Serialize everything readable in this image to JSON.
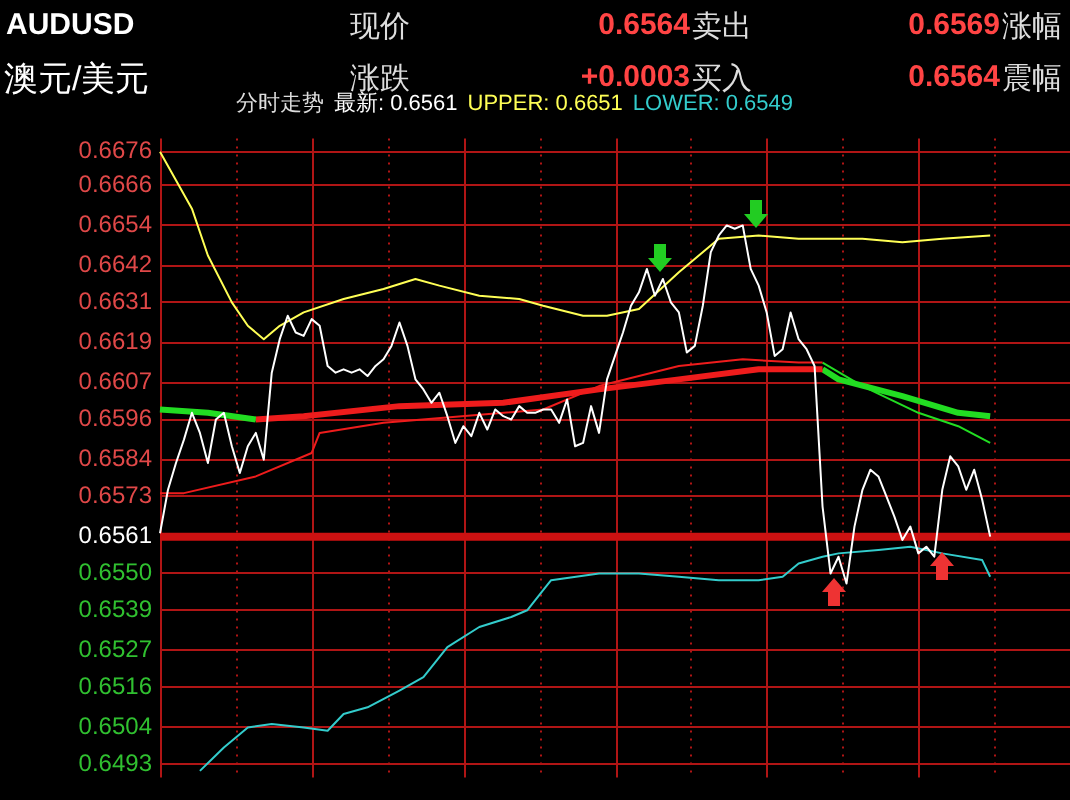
{
  "chart_data": {
    "type": "line",
    "title": "AUDUSD",
    "subtitle": "澳元/美元",
    "annotations": [
      "现价",
      "0.6564",
      "卖出",
      "0.6569",
      "涨幅",
      "涨跌",
      "+0.0003",
      "买入",
      "0.6564",
      "震幅",
      "分时走势",
      "最新: 0.6561",
      "UPPER: 0.6651",
      "LOWER: 0.6549"
    ],
    "categories": [
      null,
      null,
      null,
      null,
      null,
      null,
      null,
      null,
      null,
      null,
      null,
      null,
      null,
      null,
      null,
      null,
      null,
      null,
      null,
      null,
      null,
      null,
      null,
      null,
      null,
      null,
      null,
      null,
      null,
      null,
      null,
      null,
      null,
      null,
      null,
      null,
      null,
      null,
      null,
      null,
      null,
      null,
      null,
      null,
      null,
      null,
      null,
      null,
      null,
      null,
      null,
      null,
      null,
      null,
      null,
      null,
      null,
      null,
      null,
      null,
      null,
      null,
      null,
      null,
      null,
      null,
      null,
      null,
      null,
      null,
      null,
      null,
      null,
      null,
      null,
      null,
      null,
      null,
      null,
      null,
      null,
      null,
      null,
      null,
      null,
      null,
      null,
      null,
      null,
      null,
      null,
      null,
      null,
      null,
      null,
      null,
      null,
      null,
      null,
      null,
      null,
      null,
      null,
      null,
      null,
      null,
      null,
      null,
      null,
      null,
      null,
      null,
      null,
      null,
      null
    ],
    "ylim": [
      0.6489,
      0.668
    ],
    "yticks": [
      {
        "value": 0.6676,
        "label": "0.6676"
      },
      {
        "value": 0.6666,
        "label": "0.6666"
      },
      {
        "value": 0.6654,
        "label": "0.6654"
      },
      {
        "value": 0.6642,
        "label": "0.6642"
      },
      {
        "value": 0.6631,
        "label": "0.6631"
      },
      {
        "value": 0.6619,
        "label": "0.6619"
      },
      {
        "value": 0.6607,
        "label": "0.6607"
      },
      {
        "value": 0.6596,
        "label": "0.6596"
      },
      {
        "value": 0.6584,
        "label": "0.6584"
      },
      {
        "value": 0.6573,
        "label": "0.6573"
      },
      {
        "value": 0.6561,
        "label": "0.6561"
      },
      {
        "value": 0.655,
        "label": "0.6550"
      },
      {
        "value": 0.6539,
        "label": "0.6539"
      },
      {
        "value": 0.6527,
        "label": "0.6527"
      },
      {
        "value": 0.6516,
        "label": "0.6516"
      },
      {
        "value": 0.6504,
        "label": "0.6504"
      },
      {
        "value": 0.6493,
        "label": "0.6493"
      }
    ],
    "tick_labels": "y",
    "grid": true,
    "marker": "none",
    "ref_lines": [
      {
        "axis": "y",
        "value": 0.6561,
        "color": "#cc1111"
      }
    ],
    "series": [
      {
        "color": "#ffffff",
        "values": [
          0.6562,
          0.6575,
          0.6583,
          0.659,
          0.6598,
          0.6592,
          0.6583,
          0.6596,
          0.6598,
          0.6588,
          0.658,
          0.6588,
          0.6592,
          0.6584,
          0.661,
          0.662,
          0.6627,
          0.6622,
          0.6621,
          0.6626,
          0.6624,
          0.6612,
          0.661,
          0.6611,
          0.661,
          0.6611,
          0.6609,
          0.6612,
          0.6614,
          0.6618,
          0.6625,
          0.6618,
          0.6608,
          0.6605,
          0.6601,
          0.6604,
          0.6597,
          0.6589,
          0.6594,
          0.6591,
          0.6598,
          0.6593,
          0.6599,
          0.6597,
          0.6596,
          0.66,
          0.6598,
          0.6598,
          0.6599,
          0.6599,
          0.6595,
          0.6602,
          0.6588,
          0.6589,
          0.66,
          0.6592,
          0.6608,
          0.6615,
          0.6622,
          0.663,
          0.6634,
          0.6641,
          0.6633,
          0.6638,
          0.6631,
          0.6628,
          0.6616,
          0.6618,
          0.663,
          0.6646,
          0.6651,
          0.6654,
          0.6653,
          0.6654,
          0.6641,
          0.6636,
          0.6628,
          0.6615,
          0.6617,
          0.6628,
          0.662,
          0.6617,
          0.6612,
          0.657,
          0.655,
          0.6555,
          0.6547,
          0.6564,
          0.6575,
          0.6581,
          0.6579,
          0.6573,
          0.6567,
          0.656,
          0.6564,
          0.6556,
          0.6558,
          0.6555,
          0.6575,
          0.6585,
          0.6582,
          0.6575,
          0.6581,
          0.6572,
          0.6561,
          null,
          null,
          null,
          null,
          null,
          null,
          null,
          null,
          null,
          null
        ]
      },
      {
        "color": "#ffff55",
        "values": [
          0.6676,
          null,
          null,
          null,
          0.6659,
          null,
          0.6645,
          null,
          null,
          0.6631,
          null,
          0.6624,
          null,
          0.662,
          null,
          0.6624,
          null,
          null,
          0.6628,
          null,
          null,
          null,
          null,
          0.6632,
          null,
          null,
          null,
          null,
          0.6635,
          null,
          null,
          null,
          0.6638,
          null,
          null,
          0.6636,
          null,
          null,
          null,
          null,
          0.6633,
          null,
          null,
          null,
          null,
          0.6632,
          null,
          null,
          0.663,
          null,
          null,
          null,
          null,
          0.6627,
          null,
          null,
          0.6627,
          null,
          null,
          null,
          0.6629,
          null,
          null,
          null,
          null,
          0.664,
          null,
          null,
          null,
          null,
          0.665,
          null,
          null,
          null,
          null,
          0.6651,
          null,
          null,
          null,
          null,
          0.665,
          null,
          null,
          null,
          null,
          null,
          null,
          null,
          0.665,
          null,
          null,
          null,
          null,
          0.6649,
          null,
          null,
          null,
          null,
          0.665,
          null,
          null,
          null,
          null,
          null,
          0.6651,
          null,
          null,
          null,
          null,
          null,
          null,
          null,
          null,
          null,
          null
        ]
      },
      {
        "color": "#33cccc",
        "values": [
          null,
          null,
          null,
          null,
          null,
          0.6491,
          null,
          null,
          0.6498,
          null,
          null,
          0.6504,
          null,
          null,
          0.6505,
          null,
          null,
          null,
          0.6504,
          null,
          null,
          0.6503,
          null,
          0.6508,
          null,
          null,
          0.651,
          null,
          null,
          null,
          0.6515,
          null,
          null,
          0.6519,
          null,
          null,
          0.6528,
          null,
          null,
          null,
          0.6534,
          null,
          null,
          null,
          0.6537,
          null,
          0.6539,
          null,
          0.6545,
          0.6548,
          null,
          null,
          null,
          null,
          null,
          0.655,
          null,
          null,
          null,
          null,
          0.655,
          null,
          null,
          null,
          null,
          0.6549,
          null,
          null,
          null,
          null,
          0.6548,
          null,
          null,
          null,
          null,
          0.6548,
          null,
          null,
          0.6549,
          null,
          0.6553,
          null,
          null,
          0.6555,
          null,
          0.6556,
          null,
          null,
          null,
          null,
          0.6557,
          null,
          null,
          null,
          0.6558,
          null,
          null,
          null,
          0.6556,
          null,
          null,
          null,
          null,
          0.6554,
          0.6549,
          null,
          null,
          null,
          null,
          null,
          null,
          null,
          null,
          null,
          null
        ]
      },
      {
        "color": "#22dd22",
        "values": [
          0.6599,
          null,
          null,
          null,
          null,
          null,
          0.6598,
          null,
          null,
          null,
          null,
          null,
          0.6596,
          null,
          null,
          null,
          null,
          null,
          null,
          null,
          null,
          null,
          null,
          null,
          null,
          null,
          null,
          null,
          null,
          null,
          null,
          null,
          null,
          null,
          null,
          null,
          null,
          null,
          null,
          null,
          null,
          null,
          null,
          null,
          null,
          null,
          null,
          null,
          null,
          null,
          null,
          null,
          null,
          null,
          null,
          null,
          null,
          null,
          null,
          null,
          null,
          null,
          null,
          null,
          null,
          null,
          null,
          null,
          null,
          null,
          null,
          null,
          null,
          null,
          null,
          null,
          null,
          null,
          null,
          null,
          null,
          null,
          null,
          null,
          null,
          null,
          null,
          null,
          null,
          null,
          null,
          null,
          null,
          null,
          null,
          null,
          null,
          null,
          null,
          null,
          null,
          null,
          null,
          null,
          null,
          null,
          null,
          null,
          null,
          null,
          null,
          null,
          null,
          null,
          null
        ]
      },
      {
        "color": "#ee1c1c",
        "values": [
          null,
          null,
          null,
          null,
          null,
          null,
          null,
          null,
          null,
          null,
          null,
          null,
          0.6596,
          null,
          null,
          null,
          null,
          null,
          0.6597,
          null,
          null,
          null,
          null,
          null,
          null,
          null,
          null,
          null,
          null,
          null,
          0.66,
          null,
          null,
          null,
          null,
          null,
          null,
          null,
          null,
          null,
          null,
          null,
          null,
          0.6601,
          null,
          null,
          null,
          null,
          null,
          null,
          null,
          null,
          null,
          null,
          null,
          0.6605,
          null,
          null,
          null,
          null,
          null,
          null,
          null,
          null,
          null,
          0.6608,
          null,
          null,
          null,
          null,
          null,
          null,
          null,
          null,
          null,
          0.6611,
          null,
          null,
          null,
          null,
          null,
          null,
          null,
          0.6611,
          null,
          null,
          null,
          null,
          null,
          null,
          null,
          null,
          null,
          null,
          null,
          null,
          null,
          null,
          null,
          null,
          null,
          null,
          null,
          null,
          null,
          null,
          null,
          null,
          null,
          null,
          null,
          null,
          null,
          null,
          null
        ]
      },
      {
        "color": "#22dd22",
        "values": [
          null,
          null,
          null,
          null,
          null,
          null,
          null,
          null,
          null,
          null,
          null,
          null,
          null,
          null,
          null,
          null,
          null,
          null,
          null,
          null,
          null,
          null,
          null,
          null,
          null,
          null,
          null,
          null,
          null,
          null,
          null,
          null,
          null,
          null,
          null,
          null,
          null,
          null,
          null,
          null,
          null,
          null,
          null,
          null,
          null,
          null,
          null,
          null,
          null,
          null,
          null,
          null,
          null,
          null,
          null,
          null,
          null,
          null,
          null,
          null,
          null,
          null,
          null,
          null,
          null,
          null,
          null,
          null,
          null,
          null,
          null,
          null,
          null,
          null,
          null,
          null,
          null,
          null,
          null,
          null,
          null,
          null,
          null,
          0.6611,
          null,
          0.6608,
          null,
          null,
          null,
          null,
          null,
          null,
          null,
          0.6603,
          null,
          null,
          null,
          null,
          null,
          null,
          0.6598,
          null,
          null,
          null,
          0.6597,
          null,
          null,
          null,
          null,
          null,
          null,
          null,
          null,
          null,
          null
        ]
      },
      {
        "color": "#ee1c1c",
        "values": [
          0.6574,
          null,
          null,
          0.6574,
          null,
          null,
          null,
          null,
          null,
          null,
          null,
          null,
          0.6579,
          null,
          null,
          null,
          null,
          null,
          null,
          0.6586,
          0.6592,
          null,
          null,
          null,
          null,
          null,
          null,
          null,
          0.6595,
          null,
          null,
          null,
          null,
          null,
          null,
          null,
          null,
          null,
          null,
          null,
          null,
          null,
          null,
          null,
          null,
          null,
          null,
          null,
          0.6599,
          null,
          null,
          null,
          null,
          null,
          null,
          0.6606,
          null,
          null,
          null,
          null,
          null,
          null,
          null,
          null,
          null,
          0.6612,
          null,
          null,
          null,
          null,
          null,
          null,
          null,
          0.6614,
          null,
          null,
          null,
          null,
          null,
          null,
          0.6613,
          null,
          null,
          0.6613,
          null,
          null,
          null,
          null,
          null,
          null,
          null,
          null,
          null,
          null,
          null,
          null,
          null,
          null,
          null,
          null,
          null,
          null,
          null,
          null,
          null,
          null,
          null,
          null,
          null,
          null,
          null,
          null,
          null,
          null,
          null
        ]
      },
      {
        "color": "#22dd22",
        "values": [
          null,
          null,
          null,
          null,
          null,
          null,
          null,
          null,
          null,
          null,
          null,
          null,
          null,
          null,
          null,
          null,
          null,
          null,
          null,
          null,
          null,
          null,
          null,
          null,
          null,
          null,
          null,
          null,
          null,
          null,
          null,
          null,
          null,
          null,
          null,
          null,
          null,
          null,
          null,
          null,
          null,
          null,
          null,
          null,
          null,
          null,
          null,
          null,
          null,
          null,
          null,
          null,
          null,
          null,
          null,
          null,
          null,
          null,
          null,
          null,
          null,
          null,
          null,
          null,
          null,
          null,
          null,
          null,
          null,
          null,
          null,
          null,
          null,
          null,
          null,
          null,
          null,
          null,
          null,
          null,
          null,
          null,
          null,
          0.6613,
          null,
          null,
          null,
          null,
          0.6606,
          null,
          null,
          null,
          null,
          null,
          null,
          0.6598,
          null,
          null,
          null,
          null,
          0.6594,
          null,
          null,
          null,
          0.6589,
          null,
          null,
          null,
          null,
          null,
          null,
          null,
          null,
          null,
          null
        ]
      }
    ]
  }
}
